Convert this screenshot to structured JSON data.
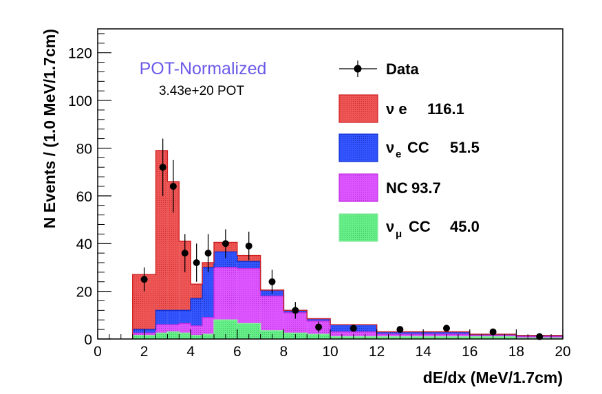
{
  "chart_data": {
    "type": "bar",
    "subtype": "stacked-histogram",
    "xlabel": "dE/dx (MeV/1.7cm)",
    "ylabel": "N Events / (1.0 MeV/1.7cm)",
    "xlim": [
      0,
      20
    ],
    "ylim": [
      0,
      130
    ],
    "xticks": [
      0,
      2,
      4,
      6,
      8,
      10,
      12,
      14,
      16,
      18,
      20
    ],
    "yticks": [
      0,
      20,
      40,
      60,
      80,
      100,
      120
    ],
    "grid": false,
    "annotations": {
      "headline": "POT-Normalized",
      "exposure": "3.43e+20 POT"
    },
    "bin_edges": [
      1.5,
      2.5,
      3.0,
      3.5,
      4.0,
      4.5,
      5.0,
      6.0,
      7.0,
      8.0,
      9.0,
      10.0,
      12.0,
      14.0,
      16.0,
      18.0,
      20.0
    ],
    "series": [
      {
        "name": "νμ CC",
        "color": "#66ee88",
        "values": [
          1.5,
          2.5,
          3.0,
          2.5,
          1.5,
          2.0,
          8.0,
          6.5,
          3.5,
          2.5,
          2.0,
          1.0,
          1.0,
          1.0,
          1.0,
          0.5
        ]
      },
      {
        "name": "NC",
        "color": "#dd55ff",
        "values": [
          1.0,
          3.5,
          3.0,
          4.0,
          4.0,
          7.0,
          22.0,
          23.0,
          14.5,
          8.5,
          5.5,
          2.0,
          1.0,
          1.0,
          0.5,
          0.5
        ]
      },
      {
        "name": "νe CC",
        "color": "#3355ff",
        "values": [
          1.5,
          6.0,
          6.0,
          5.5,
          11.5,
          21.0,
          6.5,
          3.0,
          2.5,
          1.0,
          1.0,
          3.0,
          1.0,
          1.0,
          0.5,
          0.5
        ]
      },
      {
        "name": "ν e",
        "color": "#ee5555",
        "values": [
          23.0,
          67.0,
          54.0,
          29.0,
          6.0,
          2.0,
          4.0,
          2.5,
          0.0,
          0.0,
          0.0,
          0.0,
          0.0,
          0.0,
          0.0,
          0.0
        ]
      }
    ],
    "data_points": {
      "name": "Data",
      "x": [
        2.0,
        2.8,
        3.25,
        3.75,
        4.25,
        4.75,
        5.5,
        6.5,
        7.5,
        8.5,
        9.5,
        11,
        13,
        15,
        17,
        19
      ],
      "y": [
        25,
        72,
        64,
        36,
        32,
        36,
        40,
        39,
        24,
        12,
        5,
        4.5,
        4,
        4.5,
        3,
        1
      ],
      "err": [
        5,
        12,
        11,
        8,
        8,
        8,
        6,
        6,
        5,
        3.5,
        2.3,
        1.5,
        1.4,
        1.5,
        1.2,
        0.7
      ]
    },
    "legend": {
      "position": "top-right",
      "entries": [
        {
          "label": "Data",
          "value": ""
        },
        {
          "label": "ν e",
          "value": "116.1"
        },
        {
          "label": "νe CC",
          "value": "51.5"
        },
        {
          "label": "NC",
          "value": "93.7"
        },
        {
          "label": "νμ CC",
          "value": "45.0"
        }
      ]
    }
  },
  "labels": {
    "data": "Data",
    "nu_e": "ν e",
    "nu_e_value": "116.1",
    "nue_cc_nu": "ν",
    "nue_cc_sub": "e",
    "nue_cc_tail": "CC",
    "nue_cc_value": "51.5",
    "nc": "NC",
    "nc_value": "93.7",
    "numu_cc_nu": "ν",
    "numu_cc_sub": "μ",
    "numu_cc_tail": "CC",
    "numu_cc_value": "45.0"
  }
}
